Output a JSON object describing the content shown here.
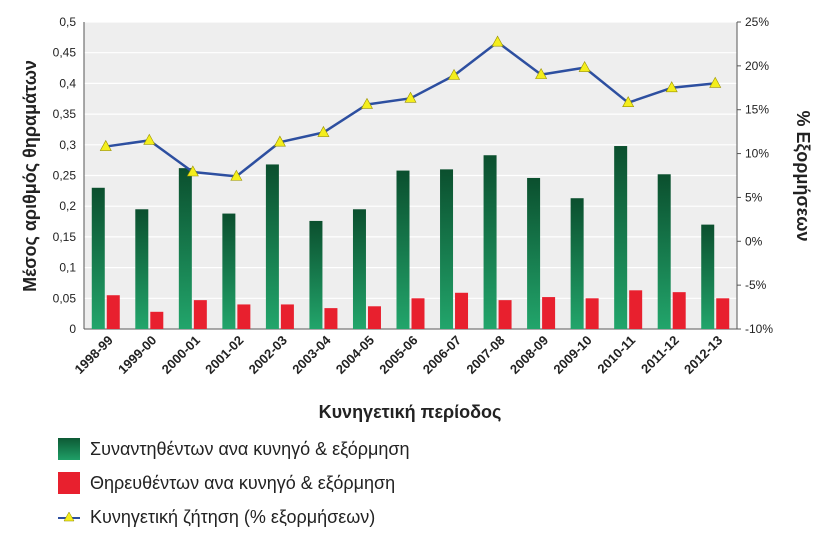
{
  "chart_data": {
    "type": "bar",
    "categories": [
      "1998-99",
      "1999-00",
      "2000-01",
      "2001-02",
      "2002-03",
      "2003-04",
      "2004-05",
      "2005-06",
      "2006-07",
      "2007-08",
      "2008-09",
      "2009-10",
      "2010-11",
      "2011-12",
      "2012-13"
    ],
    "series": [
      {
        "name": "Συναντηθέντων ανα κυνηγό & εξόρμηση",
        "type": "bar",
        "axis": "left",
        "color": "#1a7a4c",
        "values": [
          0.23,
          0.195,
          0.262,
          0.188,
          0.268,
          0.176,
          0.195,
          0.258,
          0.26,
          0.283,
          0.246,
          0.213,
          0.298,
          0.252,
          0.17
        ]
      },
      {
        "name": "Θηρευθέντων ανα κυνηγό & εξόρμηση",
        "type": "bar",
        "axis": "left",
        "color": "#e8202e",
        "values": [
          0.055,
          0.028,
          0.047,
          0.04,
          0.04,
          0.034,
          0.037,
          0.05,
          0.059,
          0.047,
          0.052,
          0.05,
          0.063,
          0.06,
          0.05
        ]
      },
      {
        "name": "Κυνηγετική ζήτηση (% εξορμήσεων)",
        "type": "line",
        "axis": "right",
        "color": "#2d4fa0",
        "values": [
          10.8,
          11.5,
          7.9,
          7.4,
          11.3,
          12.4,
          15.6,
          16.3,
          18.9,
          22.7,
          19.0,
          19.8,
          15.8,
          17.5,
          18.0
        ]
      }
    ],
    "ylabel": "Μέσος αριθμός θηραμάτων",
    "y2label": "% Εξορμήσεων",
    "xlabel": "Κυνηγετική περίοδος",
    "ylim": [
      0,
      0.5
    ],
    "y2lim": [
      -10,
      25
    ],
    "yticks": [
      "0",
      "0,05",
      "0,1",
      "0,15",
      "0,2",
      "0,25",
      "0,3",
      "0,35",
      "0,4",
      "0,45",
      "0,5"
    ],
    "y2ticks": [
      "-10%",
      "-5%",
      "0%",
      "5%",
      "10%",
      "15%",
      "20%",
      "25%"
    ],
    "grid": true,
    "legend_placement": "bottom-left"
  },
  "colors": {
    "plot_background": "#eeeeee",
    "gridline": "#ffffff",
    "bar_green_top": "#0d5a35",
    "bar_green_bottom": "#1f9f67",
    "bar_red": "#e8202e",
    "line": "#2d4fa0",
    "marker": "#f4ee1c"
  },
  "legend": {
    "items": [
      {
        "label": "Συναντηθέντων ανα κυνηγό & εξόρμηση",
        "icon": "green-square-icon"
      },
      {
        "label": "Θηρευθέντων ανα κυνηγό & εξόρμηση",
        "icon": "red-square-icon"
      },
      {
        "label": "Κυνηγετική ζήτηση (% εξορμήσεων)",
        "icon": "line-triangle-icon"
      }
    ]
  }
}
